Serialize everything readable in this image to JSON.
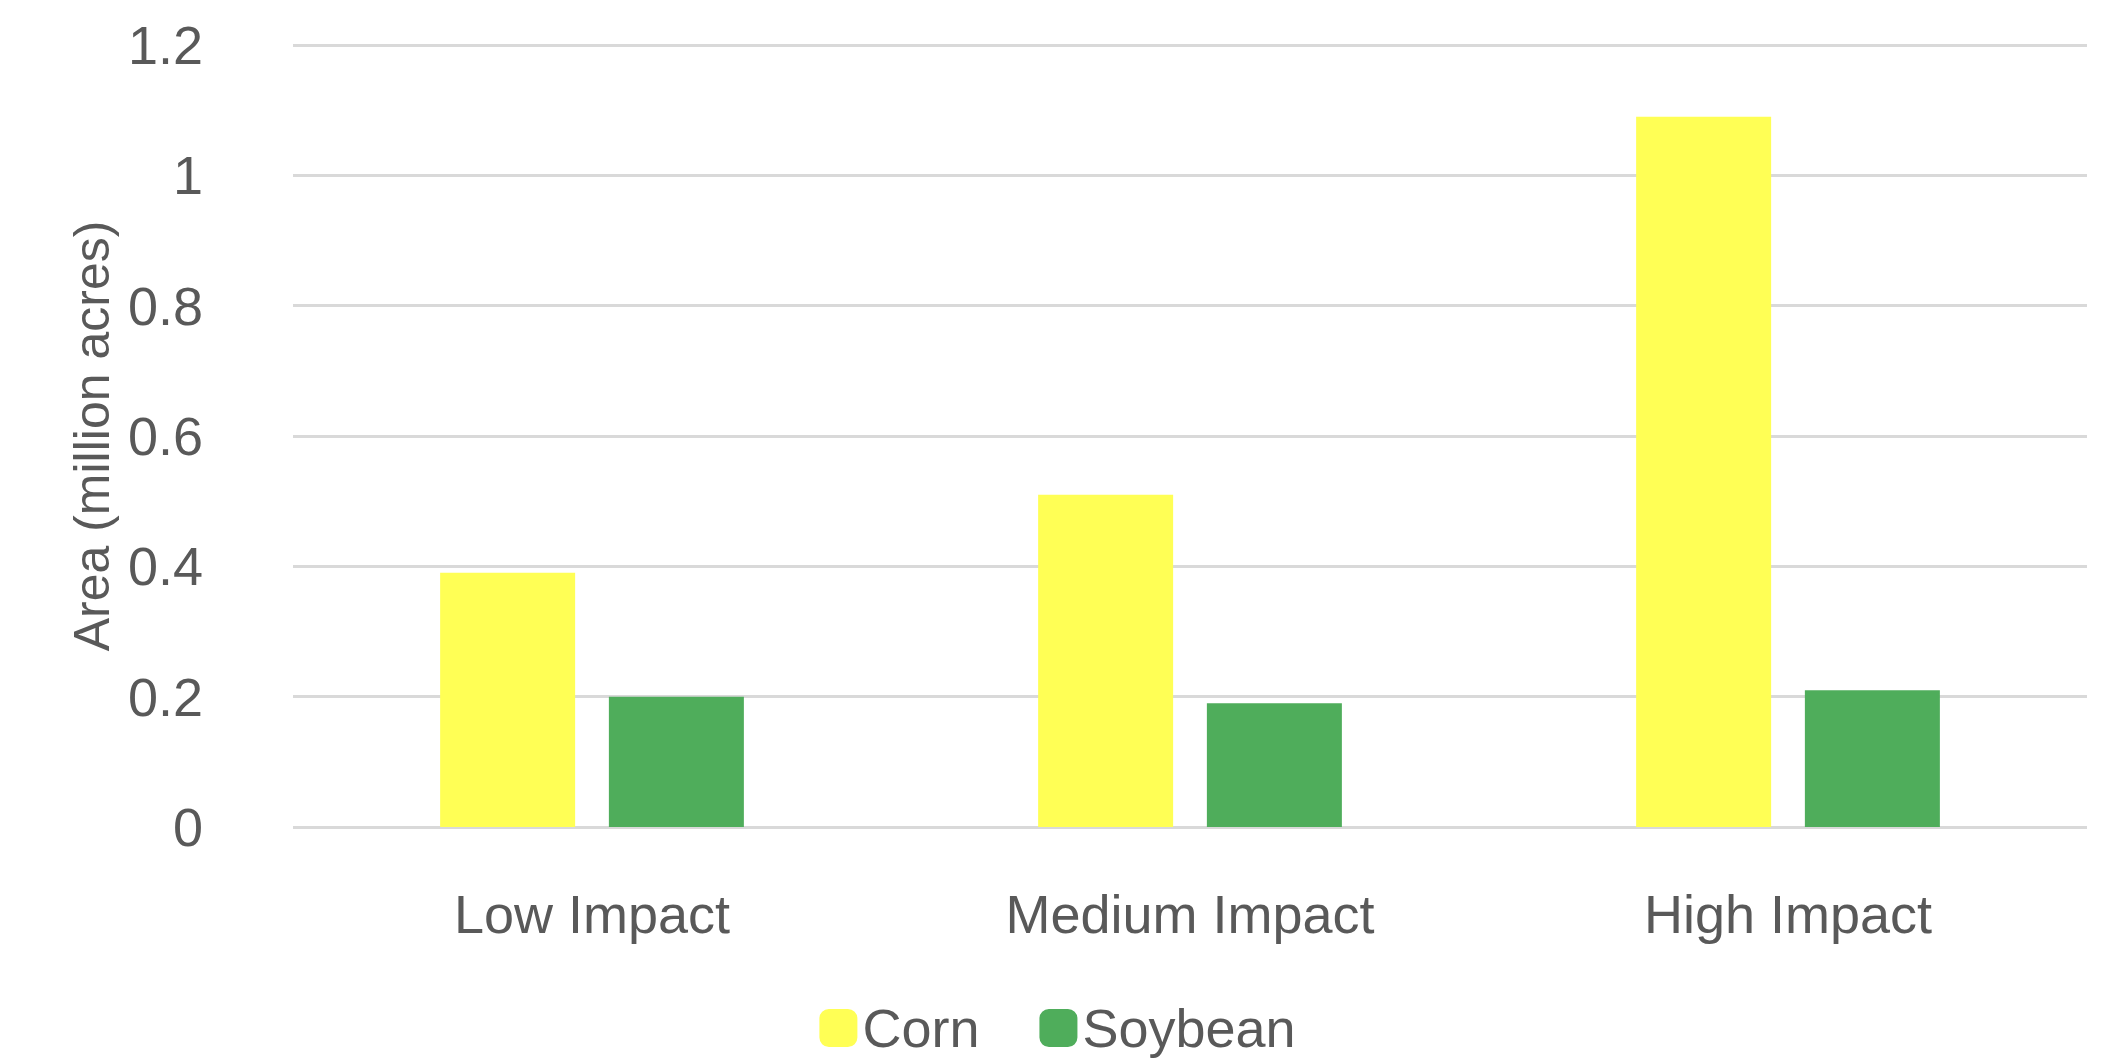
{
  "chart_data": {
    "type": "bar",
    "ylabel": "Area (million acres)",
    "categories": [
      "Low Impact",
      "Medium Impact",
      "High Impact"
    ],
    "series": [
      {
        "name": "Corn",
        "color": "#ffff55",
        "values": [
          0.39,
          0.51,
          1.09
        ]
      },
      {
        "name": "Soybean",
        "color": "#4fad5b",
        "values": [
          0.2,
          0.19,
          0.21
        ]
      }
    ],
    "ylim": [
      0,
      1.2
    ],
    "yticks": [
      0,
      0.2,
      0.4,
      0.6,
      0.8,
      1,
      1.2
    ],
    "grid": "y",
    "legend": "bottom"
  }
}
